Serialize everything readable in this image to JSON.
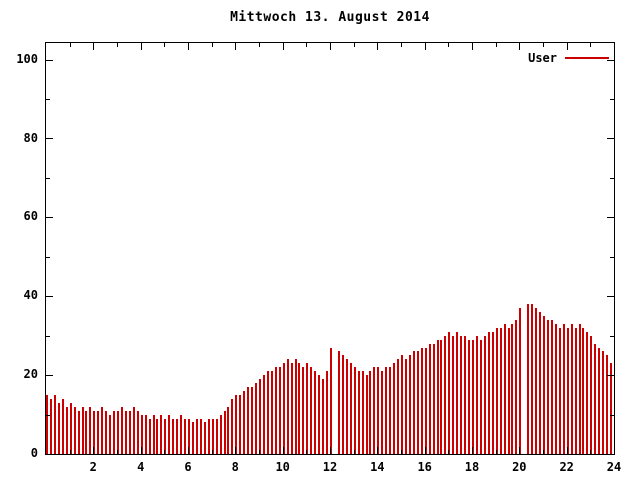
{
  "chart_data": {
    "type": "bar",
    "title": "Mittwoch 13. August 2014",
    "xlabel": "",
    "ylabel": "",
    "xlim": [
      0,
      24
    ],
    "ylim": [
      0,
      104
    ],
    "x_ticks": [
      2,
      4,
      6,
      8,
      10,
      12,
      14,
      16,
      18,
      20,
      22,
      24
    ],
    "y_ticks": [
      0,
      20,
      40,
      60,
      80,
      100
    ],
    "interval_minutes": 10,
    "bar_color": "#cc0000",
    "grid": false,
    "legend_position": "top-right",
    "series": [
      {
        "name": "User",
        "color": "#cc0000",
        "values": [
          15,
          14,
          15,
          13,
          14,
          12,
          13,
          12,
          11,
          12,
          11,
          12,
          11,
          11,
          12,
          11,
          10,
          11,
          11,
          12,
          11,
          11,
          12,
          11,
          10,
          10,
          9,
          10,
          9,
          10,
          9,
          10,
          9,
          9,
          10,
          9,
          9,
          8,
          9,
          9,
          8,
          9,
          9,
          9,
          10,
          11,
          12,
          14,
          15,
          15,
          16,
          17,
          17,
          18,
          19,
          20,
          21,
          21,
          22,
          22,
          23,
          24,
          23,
          24,
          23,
          22,
          23,
          22,
          21,
          20,
          19,
          21,
          27,
          null,
          26,
          25,
          24,
          23,
          22,
          21,
          21,
          20,
          21,
          22,
          22,
          21,
          22,
          22,
          23,
          24,
          25,
          24,
          25,
          26,
          26,
          27,
          27,
          28,
          28,
          29,
          29,
          30,
          31,
          30,
          31,
          30,
          30,
          29,
          29,
          30,
          29,
          30,
          31,
          31,
          32,
          32,
          33,
          32,
          33,
          34,
          37,
          null,
          38,
          38,
          37,
          36,
          35,
          34,
          34,
          33,
          32,
          33,
          32,
          33,
          32,
          33,
          32,
          31,
          30,
          28,
          27,
          26,
          25,
          23
        ]
      }
    ]
  }
}
